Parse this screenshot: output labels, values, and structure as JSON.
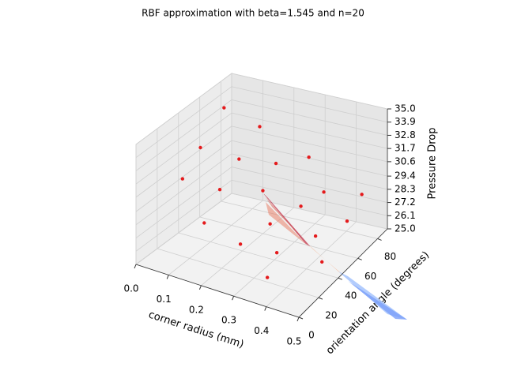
{
  "chart_data": {
    "type": "scatter3d",
    "title": "RBF approximation with beta=1.545 and n=20",
    "xlabel": "corner radius (mm)",
    "ylabel": "orientation angle (degrees)",
    "zlabel": "Pressure Drop",
    "color": "#e41a1c",
    "grid": true,
    "xlim": [
      0,
      0.5
    ],
    "ylim": [
      0,
      90
    ],
    "zlim": [
      25,
      35
    ],
    "xticks": [
      {
        "value": 0,
        "label": "0.0"
      },
      0.1,
      0.2,
      0.3,
      0.4,
      0.5
    ],
    "yticks": [
      0,
      20,
      40,
      60,
      80
    ],
    "zticks": [
      {
        "value": 25,
        "label": "25.0"
      },
      26.1,
      27.2,
      28.3,
      29.4,
      30.6,
      31.7,
      32.8,
      33.9,
      {
        "value": 35,
        "label": "35.0"
      }
    ],
    "x": [
      0.36,
      0.48,
      0.38,
      0.21,
      0.46,
      0.5,
      0.29,
      0.2,
      0.38,
      0.5,
      0.43,
      0.28,
      0.21,
      0.13,
      0.3,
      0.27,
      0.17,
      0.15,
      0.16,
      0.09
    ],
    "y": [
      14,
      30,
      17,
      35,
      30,
      49,
      39,
      3,
      41,
      64,
      48,
      35,
      15,
      4,
      74,
      51,
      46,
      15,
      69,
      56
    ],
    "z": [
      26,
      27,
      28,
      26,
      29,
      29,
      28,
      30,
      30,
      30,
      31,
      31,
      32,
      33,
      31,
      32,
      32,
      35,
      33,
      35
    ]
  }
}
